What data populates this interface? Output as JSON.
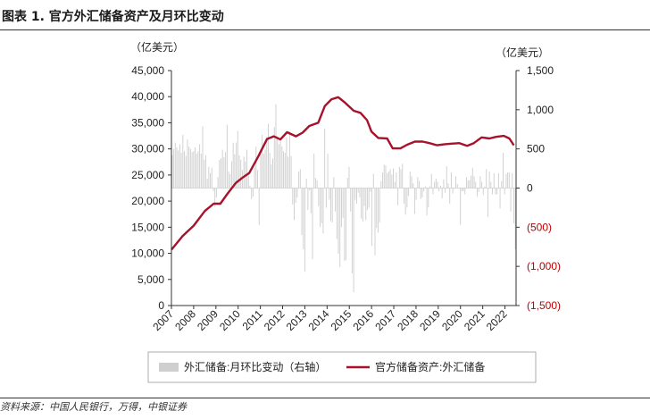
{
  "title": "图表 1. 官方外汇储备资产及月环比变动",
  "source": "资料来源：中国人民银行，万得，中银证券",
  "left_unit": "（亿美元）",
  "right_unit": "（亿美元）",
  "colors": {
    "line": "#a6122b",
    "bars": "#cfcfcf",
    "negative_text": "#c00000",
    "axis": "#333333"
  },
  "chart_data": {
    "type": "bar+line",
    "x_tick_labels": [
      "2007",
      "2008",
      "2009",
      "2010",
      "2011",
      "2012",
      "2013",
      "2014",
      "2015",
      "2016",
      "2017",
      "2018",
      "2019",
      "2020",
      "2021",
      "2022"
    ],
    "left_axis": {
      "min": 0,
      "max": 45000,
      "ticks": [
        "0",
        "5,000",
        "10,000",
        "15,000",
        "20,000",
        "25,000",
        "30,000",
        "35,000",
        "40,000",
        "45,000"
      ]
    },
    "right_axis": {
      "min": -1500,
      "max": 1500,
      "ticks": [
        "(1,500)",
        "(1,000)",
        "(500)",
        "0",
        "500",
        "1,000",
        "1,500"
      ]
    },
    "legend": [
      "外汇储备:月环比变动（右轴）",
      "官方储备资产:外汇储备"
    ],
    "line_series": {
      "name": "官方储备资产:外汇储备",
      "axis": "left",
      "points": [
        [
          2007.0,
          10700
        ],
        [
          2007.5,
          13300
        ],
        [
          2008.0,
          15300
        ],
        [
          2008.5,
          18100
        ],
        [
          2008.9,
          19500
        ],
        [
          2009.2,
          19500
        ],
        [
          2009.5,
          21300
        ],
        [
          2009.9,
          23500
        ],
        [
          2010.2,
          24500
        ],
        [
          2010.5,
          25400
        ],
        [
          2010.9,
          28500
        ],
        [
          2011.3,
          31900
        ],
        [
          2011.6,
          32400
        ],
        [
          2011.9,
          31800
        ],
        [
          2012.2,
          33200
        ],
        [
          2012.6,
          32400
        ],
        [
          2012.9,
          33100
        ],
        [
          2013.2,
          34400
        ],
        [
          2013.6,
          35000
        ],
        [
          2013.9,
          38200
        ],
        [
          2014.2,
          39500
        ],
        [
          2014.5,
          39900
        ],
        [
          2014.8,
          38900
        ],
        [
          2015.2,
          37300
        ],
        [
          2015.5,
          36900
        ],
        [
          2015.8,
          35500
        ],
        [
          2016.0,
          33300
        ],
        [
          2016.3,
          32100
        ],
        [
          2016.7,
          32000
        ],
        [
          2016.95,
          30100
        ],
        [
          2017.3,
          30100
        ],
        [
          2017.6,
          30800
        ],
        [
          2017.95,
          31400
        ],
        [
          2018.3,
          31400
        ],
        [
          2018.6,
          31100
        ],
        [
          2018.95,
          30700
        ],
        [
          2019.3,
          30900
        ],
        [
          2019.6,
          31000
        ],
        [
          2019.95,
          31100
        ],
        [
          2020.3,
          30600
        ],
        [
          2020.6,
          31100
        ],
        [
          2020.95,
          32200
        ],
        [
          2021.3,
          32000
        ],
        [
          2021.6,
          32300
        ],
        [
          2021.95,
          32500
        ],
        [
          2022.2,
          32000
        ],
        [
          2022.4,
          30700
        ]
      ]
    },
    "bar_series": {
      "name": "外汇储备:月环比变动（右轴）",
      "axis": "right",
      "x_start": 2007.0,
      "x_end": 2022.5,
      "values": [
        420,
        500,
        580,
        520,
        480,
        560,
        450,
        680,
        470,
        410,
        620,
        530,
        500,
        460,
        470,
        520,
        440,
        470,
        560,
        440,
        790,
        360,
        420,
        120,
        270,
        190,
        260,
        -40,
        -240,
        -120,
        140,
        360,
        380,
        490,
        390,
        460,
        810,
        210,
        180,
        340,
        580,
        430,
        580,
        730,
        420,
        360,
        230,
        400,
        340,
        490,
        200,
        30,
        -140,
        -110,
        260,
        530,
        230,
        -470,
        500,
        680,
        440,
        490,
        650,
        820,
        450,
        300,
        380,
        780,
        1070,
        660,
        560,
        600,
        530,
        470,
        450,
        650,
        400,
        720,
        410,
        -210,
        -410,
        -190,
        -120,
        210,
        240,
        -600,
        -780,
        -1070,
        120,
        -280,
        -30,
        -320,
        -910,
        440,
        130,
        100,
        -230,
        -500,
        -450,
        -580,
        760,
        -250,
        440,
        -150,
        -420,
        -440,
        140,
        -300,
        -650,
        -840,
        -1010,
        -500,
        -380,
        -930,
        -920,
        130,
        270,
        -300,
        -1090,
        -1330,
        -150,
        -200,
        -60,
        -120,
        -390,
        -430,
        -230,
        -410,
        -280,
        -250,
        -50,
        -740,
        180,
        -860,
        -510,
        -570,
        -440,
        90,
        200,
        300,
        290,
        190,
        210,
        240,
        170,
        250,
        80,
        200,
        -220,
        270,
        240,
        310,
        -200,
        -340,
        -250,
        -100,
        210,
        150,
        60,
        -330,
        -150,
        140,
        90,
        -140,
        -120,
        -40,
        20,
        -350,
        -250,
        20,
        180,
        -80,
        80,
        120,
        80,
        -40,
        30,
        -130,
        110,
        -60,
        280,
        60,
        -200,
        200,
        -70,
        -10,
        150,
        50,
        -10,
        -470,
        -40,
        -40,
        -80,
        140,
        100,
        100,
        160,
        260,
        150,
        80,
        -110,
        -50,
        150,
        80,
        -90,
        20,
        240,
        -370,
        210,
        80,
        -80,
        190,
        -80,
        -80,
        190,
        -260,
        90,
        450,
        -80,
        180,
        200,
        200,
        -300,
        190,
        -450,
        -780
      ]
    }
  }
}
